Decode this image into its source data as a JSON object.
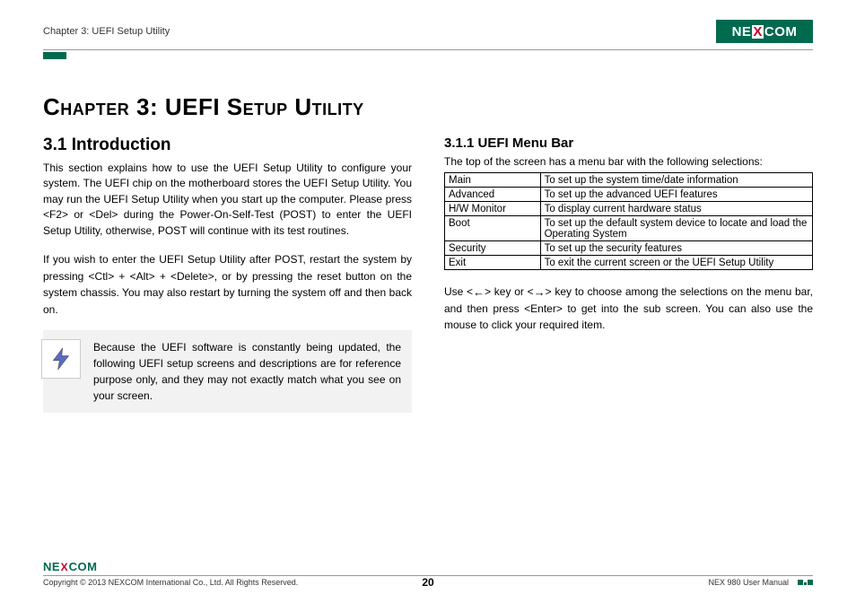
{
  "header": {
    "breadcrumb": "Chapter 3: UEFI Setup Utility",
    "logo_text_pre": "NE",
    "logo_text_x": "X",
    "logo_text_post": "COM"
  },
  "content": {
    "chapter_title": "Chapter 3: UEFI Setup Utility",
    "section_title": "3.1  Introduction",
    "para1": "This section explains how to use the UEFI Setup Utility to configure your system. The UEFI chip on the motherboard stores the UEFI Setup Utility. You may run the UEFI Setup Utility when you start up the computer. Please press <F2> or <Del> during the Power-On-Self-Test (POST) to enter the UEFI Setup Utility, otherwise, POST will continue with its test routines.",
    "para2": "If you wish to enter the UEFI Setup Utility after POST, restart the system by pressing <Ctl> + <Alt> + <Delete>, or by pressing the reset button on the system chassis. You may also restart by turning the system off and then back on.",
    "callout": "Because the UEFI software is constantly being updated, the following UEFI setup screens and descriptions are for reference purpose only, and they may not exactly match what you see on your screen.",
    "subsection_title": "3.1.1  UEFI Menu Bar",
    "menu_intro": "The top of the screen has a menu bar with the following selections:",
    "menu_table": [
      [
        "Main",
        "To set up the system time/date information"
      ],
      [
        "Advanced",
        "To set up the advanced UEFI features"
      ],
      [
        "H/W Monitor",
        "To display current hardware status"
      ],
      [
        "Boot",
        "To set up the default system device to locate and load the Operating System"
      ],
      [
        "Security",
        "To set up the security features"
      ],
      [
        "Exit",
        "To exit the current screen or the UEFI Setup Utility"
      ]
    ],
    "nav_hint_pre": "Use <",
    "nav_hint_mid1": "> key or <",
    "nav_hint_mid2": "> key to choose among the selections on the menu bar, and then press <Enter> to get into the sub screen. You can also use the mouse to click your required item."
  },
  "footer": {
    "copyright": "Copyright © 2013 NEXCOM International Co., Ltd. All Rights Reserved.",
    "page_num": "20",
    "doc_title": "NEX 980 User Manual"
  },
  "colors": {
    "brand_green": "#006a4e",
    "brand_red": "#c6002a",
    "gray_bg": "#f2f2f2",
    "text": "#000000"
  }
}
